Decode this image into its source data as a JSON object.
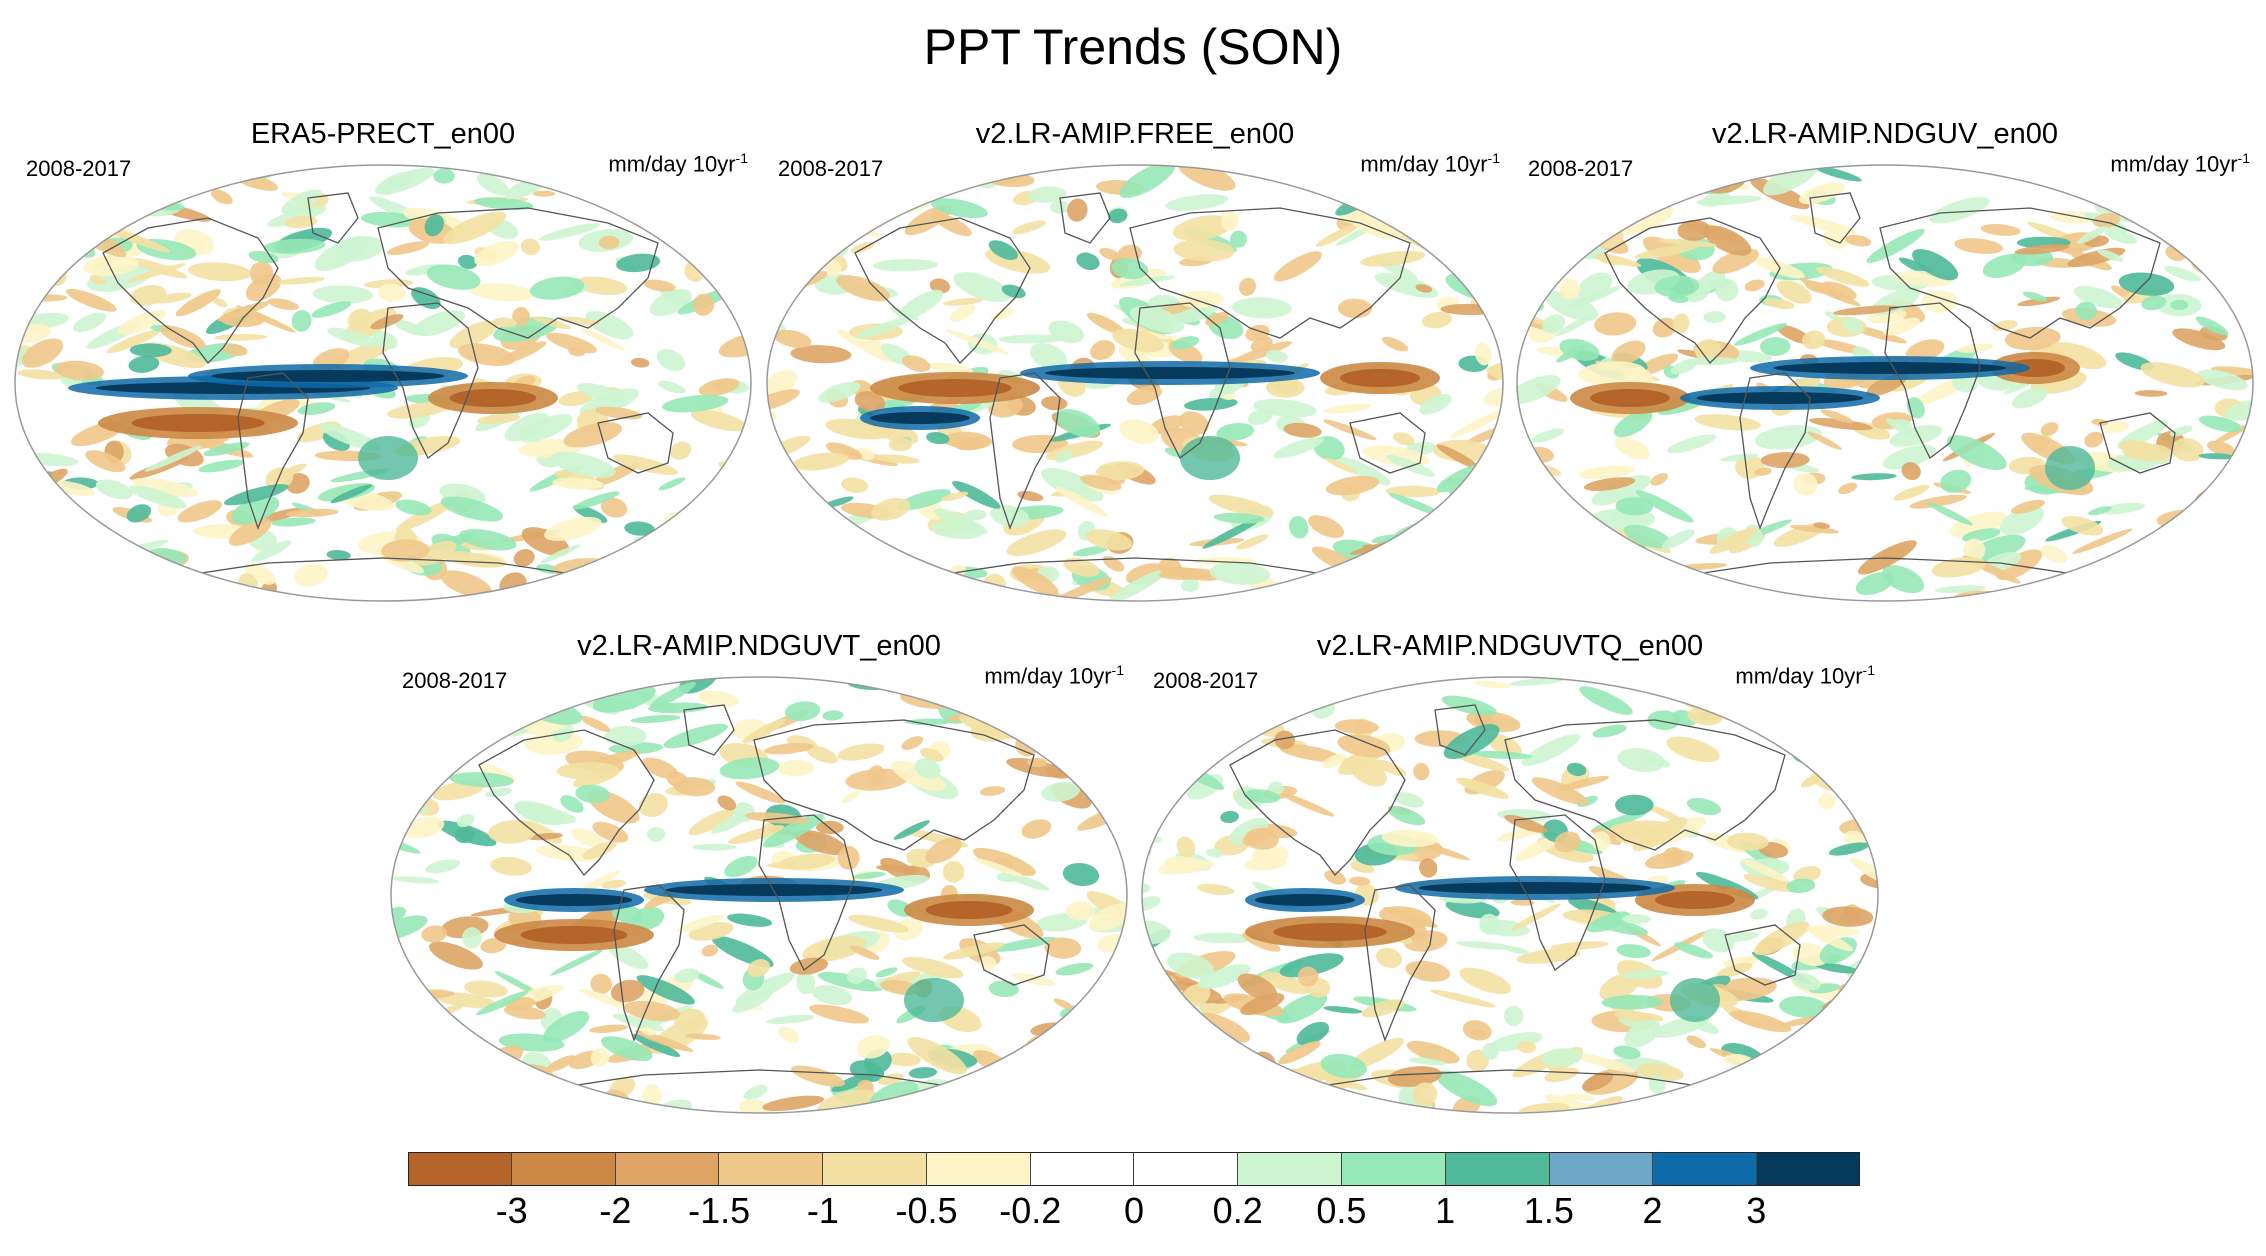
{
  "title": "PPT Trends (SON)",
  "panels": [
    {
      "title": "ERA5-PRECT_en00",
      "period": "2008-2017",
      "units": "mm/day 10yr",
      "units_sup": "-1"
    },
    {
      "title": "v2.LR-AMIP.FREE_en00",
      "period": "2008-2017",
      "units": "mm/day 10yr",
      "units_sup": "-1"
    },
    {
      "title": "v2.LR-AMIP.NDGUV_en00",
      "period": "2008-2017",
      "units": "mm/day 10yr",
      "units_sup": "-1"
    },
    {
      "title": "v2.LR-AMIP.NDGUVT_en00",
      "period": "2008-2017",
      "units": "mm/day 10yr",
      "units_sup": "-1"
    },
    {
      "title": "v2.LR-AMIP.NDGUVTQ_en00",
      "period": "2008-2017",
      "units": "mm/day 10yr",
      "units_sup": "-1"
    }
  ],
  "colorbar": {
    "labels": [
      "-3",
      "-2",
      "-1.5",
      "-1",
      "-0.5",
      "-0.2",
      "0",
      "0.2",
      "0.5",
      "1",
      "1.5",
      "2",
      "3"
    ],
    "colors": [
      "#b5652a",
      "#cc8845",
      "#dda466",
      "#f0c88a",
      "#f3e1a3",
      "#fdf4c6",
      "#ffffff",
      "#ffffff",
      "#cdf5d0",
      "#96e8b6",
      "#4fb99a",
      "#6ea8c8",
      "#0e6aa8",
      "#053a5c"
    ]
  },
  "colors": {
    "coast": "#555555",
    "map_outline": "#999999",
    "wet_band": "#053a5c",
    "dry_band": "#b5652a"
  }
}
